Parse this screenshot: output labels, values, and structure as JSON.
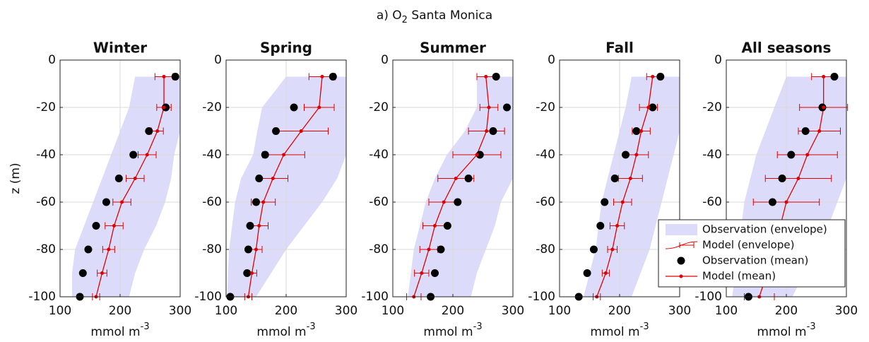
{
  "figure_title": {
    "prefix": "a) O",
    "sub": "2",
    "suffix": " Santa Monica"
  },
  "chart_data": [
    {
      "type": "profile",
      "title": "Winter",
      "ylabel": "z (m)",
      "xlabel": "mmol m",
      "xlabel_sup": "-3",
      "xlim": [
        100,
        300
      ],
      "ylim": [
        -100,
        0
      ],
      "xticks": [
        100,
        200,
        300
      ],
      "yticks": [
        0,
        -20,
        -40,
        -60,
        -80,
        -100
      ],
      "grid": true,
      "depth": [
        -7,
        -20,
        -30,
        -40,
        -50,
        -60,
        -70,
        -80,
        -90,
        -100
      ],
      "series": [
        {
          "color": "#dcdcfa",
          "low": [
            225,
            215,
            200,
            185,
            170,
            155,
            140,
            125,
            120,
            120
          ],
          "high": [
            300,
            300,
            300,
            290,
            285,
            275,
            260,
            240,
            225,
            215
          ]
        },
        {
          "color": "#e00000",
          "errors": [
            15,
            12,
            10,
            15,
            15,
            15,
            15,
            10,
            8,
            6
          ]
        },
        {
          "color": "#000000",
          "values": [
            292,
            276,
            248,
            222,
            198,
            177,
            160,
            147,
            138,
            133
          ]
        },
        {
          "color": "#e00000",
          "values": [
            273,
            273,
            262,
            245,
            225,
            203,
            190,
            181,
            170,
            160
          ]
        }
      ]
    },
    {
      "type": "profile",
      "title": "Spring",
      "xlabel": "mmol m",
      "xlabel_sup": "-3",
      "xlim": [
        100,
        300
      ],
      "ylim": [
        -100,
        0
      ],
      "xticks": [
        100,
        200,
        300
      ],
      "yticks": [
        0,
        -20,
        -40,
        -60,
        -80,
        -100
      ],
      "grid": true,
      "depth": [
        -7,
        -20,
        -30,
        -40,
        -50,
        -60,
        -70,
        -80,
        -90,
        -100
      ],
      "series": [
        {
          "color": "#dcdcfa",
          "low": [
            200,
            160,
            152,
            145,
            125,
            115,
            110,
            105,
            103,
            102
          ],
          "high": [
            300,
            300,
            300,
            300,
            285,
            260,
            230,
            200,
            175,
            150
          ]
        },
        {
          "color": "#e00000",
          "errors": [
            22,
            25,
            45,
            35,
            25,
            20,
            15,
            10,
            8,
            6
          ]
        },
        {
          "color": "#000000",
          "values": [
            278,
            213,
            183,
            165,
            155,
            150,
            140,
            137,
            135,
            107
          ]
        },
        {
          "color": "#e00000",
          "values": [
            260,
            255,
            225,
            196,
            178,
            162,
            155,
            150,
            143,
            137
          ]
        }
      ]
    },
    {
      "type": "profile",
      "title": "Summer",
      "xlabel": "mmol m",
      "xlabel_sup": "-3",
      "xlim": [
        100,
        300
      ],
      "ylim": [
        -100,
        0
      ],
      "xticks": [
        100,
        200,
        300
      ],
      "yticks": [
        0,
        -20,
        -40,
        -60,
        -80,
        -100
      ],
      "grid": true,
      "depth": [
        -7,
        -20,
        -30,
        -40,
        -50,
        -60,
        -70,
        -80,
        -90,
        -100
      ],
      "series": [
        {
          "color": "#dcdcfa",
          "low": [
            240,
            240,
            220,
            190,
            170,
            155,
            145,
            135,
            130,
            125
          ],
          "high": [
            300,
            300,
            300,
            300,
            300,
            280,
            270,
            255,
            240,
            230
          ]
        },
        {
          "color": "#e00000",
          "errors": [
            15,
            15,
            30,
            40,
            30,
            25,
            20,
            15,
            12,
            12
          ]
        },
        {
          "color": "#000000",
          "values": [
            272,
            290,
            267,
            245,
            226,
            208,
            191,
            180,
            170,
            163
          ]
        },
        {
          "color": "#e00000",
          "values": [
            255,
            260,
            256,
            240,
            205,
            185,
            170,
            160,
            148,
            135
          ]
        }
      ]
    },
    {
      "type": "profile",
      "title": "Fall",
      "xlabel": "mmol m",
      "xlabel_sup": "-3",
      "xlim": [
        100,
        300
      ],
      "ylim": [
        -100,
        0
      ],
      "xticks": [
        100,
        200,
        300
      ],
      "yticks": [
        0,
        -20,
        -40,
        -60,
        -80,
        -100
      ],
      "grid": true,
      "depth": [
        -7,
        -20,
        -30,
        -40,
        -50,
        -60,
        -70,
        -80,
        -90,
        -100
      ],
      "series": [
        {
          "color": "#dcdcfa",
          "low": [
            220,
            210,
            200,
            190,
            180,
            170,
            165,
            160,
            150,
            140
          ],
          "high": [
            300,
            300,
            300,
            290,
            280,
            270,
            260,
            250,
            235,
            220
          ]
        },
        {
          "color": "#e00000",
          "errors": [
            10,
            15,
            15,
            20,
            20,
            15,
            12,
            8,
            6,
            6
          ]
        },
        {
          "color": "#000000",
          "values": [
            268,
            255,
            228,
            210,
            192,
            175,
            168,
            157,
            146,
            132
          ]
        },
        {
          "color": "#e00000",
          "values": [
            255,
            248,
            236,
            228,
            218,
            205,
            196,
            188,
            177,
            162
          ]
        }
      ]
    },
    {
      "type": "profile",
      "title": "All seasons",
      "xlabel": "mmol m",
      "xlabel_sup": "-3",
      "xlim": [
        100,
        300
      ],
      "ylim": [
        -100,
        0
      ],
      "xticks": [
        100,
        200,
        300
      ],
      "yticks": [
        0,
        -20,
        -40,
        -60,
        -80,
        -100
      ],
      "grid": true,
      "legend": "lower right",
      "depth": [
        -7,
        -20,
        -30,
        -40,
        -50,
        -60,
        -70,
        -80,
        -90,
        -100
      ],
      "series": [
        {
          "name": "Observation (envelope)",
          "color": "#dcdcfa",
          "low": [
            200,
            180,
            165,
            150,
            140,
            130,
            125,
            120,
            115,
            110
          ],
          "high": [
            300,
            300,
            300,
            300,
            300,
            285,
            270,
            250,
            230,
            210
          ]
        },
        {
          "name": "Model (envelope)",
          "color": "#e00000",
          "errors": [
            20,
            40,
            35,
            50,
            55,
            55,
            50,
            40,
            30,
            25
          ]
        },
        {
          "name": "Observation (mean)",
          "color": "#000000",
          "values": [
            280,
            260,
            232,
            208,
            193,
            177,
            165,
            155,
            145,
            137
          ]
        },
        {
          "name": "Model (mean)",
          "color": "#e00000",
          "values": [
            262,
            262,
            255,
            235,
            220,
            200,
            190,
            180,
            168,
            155
          ]
        }
      ]
    }
  ]
}
